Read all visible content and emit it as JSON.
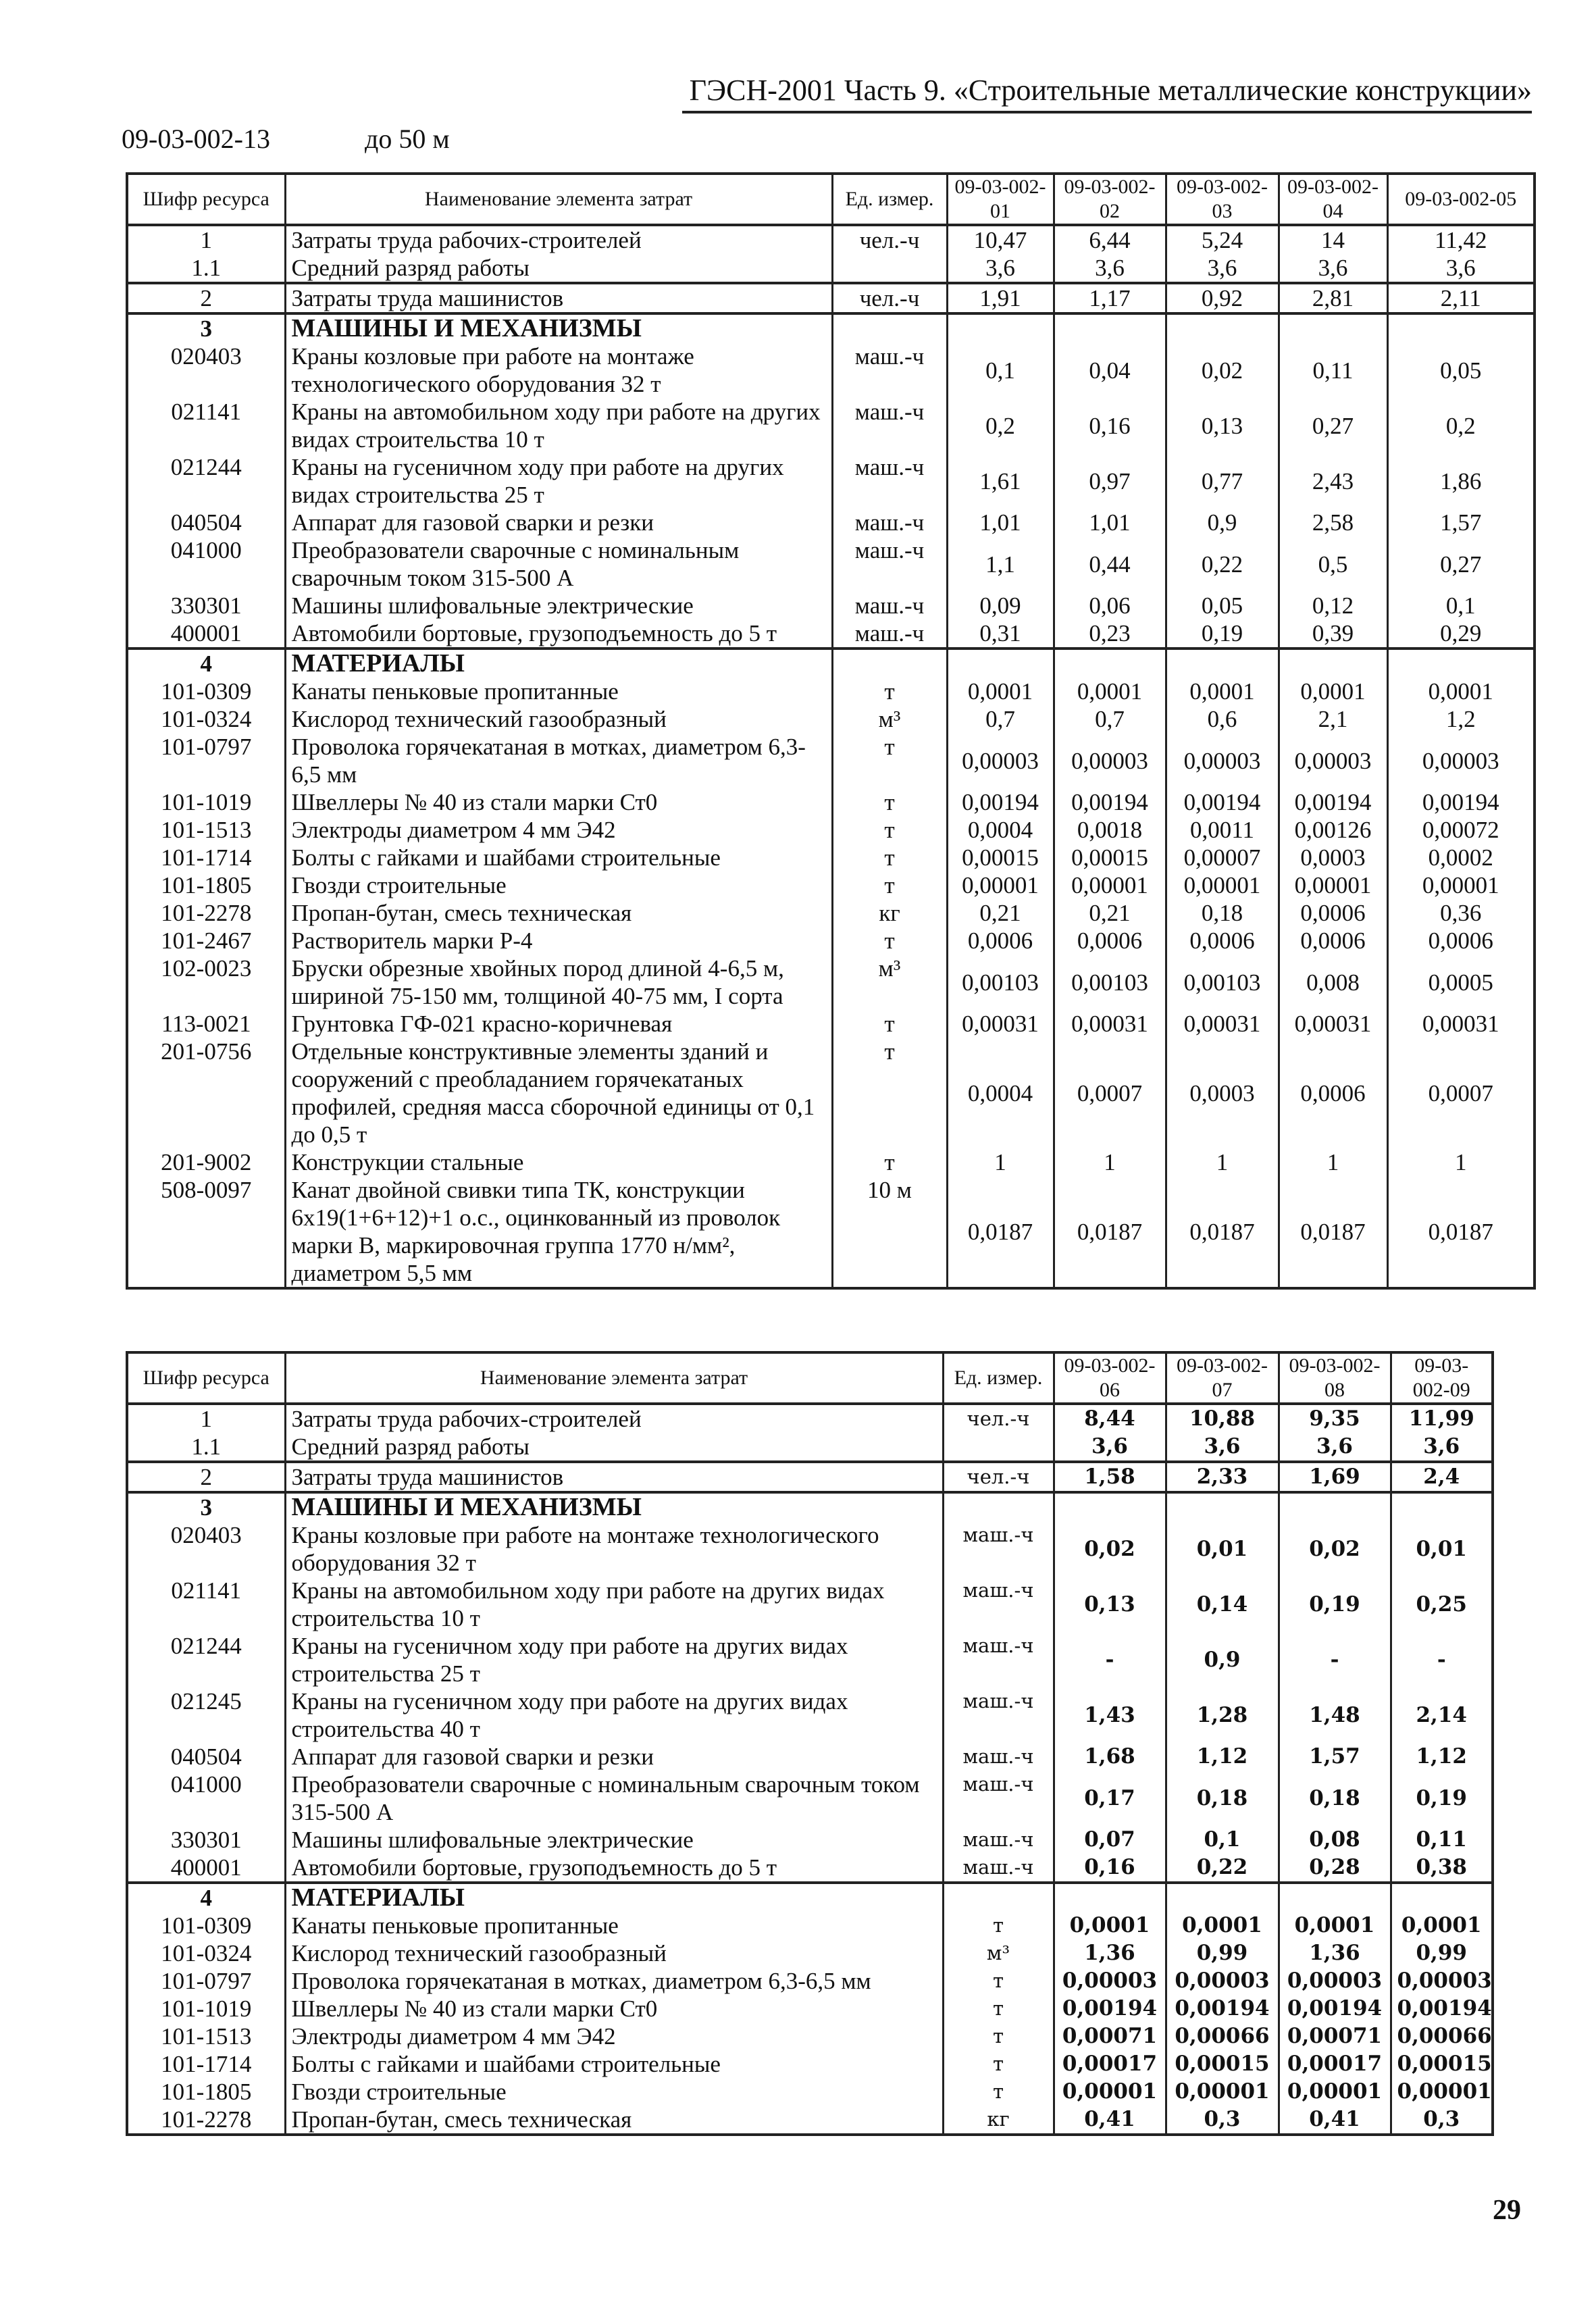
{
  "header": {
    "title": "ГЭСН-2001 Часть 9. «Строительные металлические конструкции»"
  },
  "norm": {
    "code": "09-03-002-13",
    "range": "до 50 м"
  },
  "table1": {
    "headers": {
      "code": "Шифр ресурса",
      "name": "Наименование элемента затрат",
      "unit": "Ед. измер.",
      "cols": [
        "09-03-002-01",
        "09-03-002-02",
        "09-03-002-03",
        "09-03-002-04",
        "09-03-002-05"
      ]
    },
    "groups": [
      [
        {
          "code": "1",
          "name": "Затраты труда рабочих-строителей",
          "unit": "чел.-ч",
          "values": [
            "10,47",
            "6,44",
            "5,24",
            "14",
            "11,42"
          ]
        },
        {
          "code": "1.1",
          "name": "Средний разряд работы",
          "unit": "",
          "values": [
            "3,6",
            "3,6",
            "3,6",
            "3,6",
            "3,6"
          ]
        }
      ],
      [
        {
          "code": "2",
          "name": "Затраты труда машинистов",
          "unit": "чел.-ч",
          "values": [
            "1,91",
            "1,17",
            "0,92",
            "2,81",
            "2,11"
          ]
        }
      ],
      [
        {
          "code": "3",
          "name": "МАШИНЫ И МЕХАНИЗМЫ",
          "unit": "",
          "values": [],
          "section": true
        },
        {
          "code": "020403",
          "name": "Краны козловые при работе на монтаже технологического оборудования 32 т",
          "unit": "маш.-ч",
          "values": [
            "0,1",
            "0,04",
            "0,02",
            "0,11",
            "0,05"
          ]
        },
        {
          "code": "021141",
          "name": "Краны на автомобильном ходу при работе на других видах строительства 10 т",
          "unit": "маш.-ч",
          "values": [
            "0,2",
            "0,16",
            "0,13",
            "0,27",
            "0,2"
          ]
        },
        {
          "code": "021244",
          "name": "Краны на гусеничном ходу при работе на других видах строительства 25 т",
          "unit": "маш.-ч",
          "values": [
            "1,61",
            "0,97",
            "0,77",
            "2,43",
            "1,86"
          ]
        },
        {
          "code": "040504",
          "name": "Аппарат для газовой сварки и резки",
          "unit": "маш.-ч",
          "values": [
            "1,01",
            "1,01",
            "0,9",
            "2,58",
            "1,57"
          ]
        },
        {
          "code": "041000",
          "name": "Преобразователи сварочные с номинальным сварочным током 315-500 А",
          "unit": "маш.-ч",
          "values": [
            "1,1",
            "0,44",
            "0,22",
            "0,5",
            "0,27"
          ]
        },
        {
          "code": "330301",
          "name": "Машины шлифовальные электрические",
          "unit": "маш.-ч",
          "values": [
            "0,09",
            "0,06",
            "0,05",
            "0,12",
            "0,1"
          ]
        },
        {
          "code": "400001",
          "name": "Автомобили бортовые, грузоподъемность до 5 т",
          "unit": "маш.-ч",
          "values": [
            "0,31",
            "0,23",
            "0,19",
            "0,39",
            "0,29"
          ]
        }
      ],
      [
        {
          "code": "4",
          "name": "МАТЕРИАЛЫ",
          "unit": "",
          "values": [],
          "section": true
        },
        {
          "code": "101-0309",
          "name": "Канаты пеньковые пропитанные",
          "unit": "т",
          "values": [
            "0,0001",
            "0,0001",
            "0,0001",
            "0,0001",
            "0,0001"
          ]
        },
        {
          "code": "101-0324",
          "name": "Кислород технический газообразный",
          "unit": "м³",
          "values": [
            "0,7",
            "0,7",
            "0,6",
            "2,1",
            "1,2"
          ]
        },
        {
          "code": "101-0797",
          "name": "Проволока горячекатаная в мотках, диаметром 6,3-6,5 мм",
          "unit": "т",
          "values": [
            "0,00003",
            "0,00003",
            "0,00003",
            "0,00003",
            "0,00003"
          ]
        },
        {
          "code": "101-1019",
          "name": "Швеллеры № 40 из стали марки Ст0",
          "unit": "т",
          "values": [
            "0,00194",
            "0,00194",
            "0,00194",
            "0,00194",
            "0,00194"
          ]
        },
        {
          "code": "101-1513",
          "name": "Электроды диаметром 4 мм Э42",
          "unit": "т",
          "values": [
            "0,0004",
            "0,0018",
            "0,0011",
            "0,00126",
            "0,00072"
          ]
        },
        {
          "code": "101-1714",
          "name": "Болты с гайками и шайбами строительные",
          "unit": "т",
          "values": [
            "0,00015",
            "0,00015",
            "0,00007",
            "0,0003",
            "0,0002"
          ]
        },
        {
          "code": "101-1805",
          "name": "Гвозди строительные",
          "unit": "т",
          "values": [
            "0,00001",
            "0,00001",
            "0,00001",
            "0,00001",
            "0,00001"
          ]
        },
        {
          "code": "101-2278",
          "name": "Пропан-бутан, смесь техническая",
          "unit": "кг",
          "values": [
            "0,21",
            "0,21",
            "0,18",
            "0,0006",
            "0,36"
          ]
        },
        {
          "code": "101-2467",
          "name": "Растворитель марки Р-4",
          "unit": "т",
          "values": [
            "0,0006",
            "0,0006",
            "0,0006",
            "0,0006",
            "0,0006"
          ]
        },
        {
          "code": "102-0023",
          "name": "Бруски обрезные хвойных пород длиной 4-6,5 м, шириной 75-150 мм, толщиной 40-75 мм, I сорта",
          "unit": "м³",
          "values": [
            "0,00103",
            "0,00103",
            "0,00103",
            "0,008",
            "0,0005"
          ]
        },
        {
          "code": "113-0021",
          "name": "Грунтовка ГФ-021 красно-коричневая",
          "unit": "т",
          "values": [
            "0,00031",
            "0,00031",
            "0,00031",
            "0,00031",
            "0,00031"
          ]
        },
        {
          "code": "201-0756",
          "name": "Отдельные конструктивные элементы зданий и сооружений с преобладанием горячекатаных профилей, средняя масса сборочной единицы от 0,1 до 0,5 т",
          "unit": "т",
          "values": [
            "0,0004",
            "0,0007",
            "0,0003",
            "0,0006",
            "0,0007"
          ]
        },
        {
          "code": "201-9002",
          "name": "Конструкции стальные",
          "unit": "т",
          "values": [
            "1",
            "1",
            "1",
            "1",
            "1"
          ]
        },
        {
          "code": "508-0097",
          "name": "Канат двойной свивки типа ТК, конструкции 6х19(1+6+12)+1 о.с., оцинкованный из проволок марки В, маркировочная группа 1770 н/мм², диаметром 5,5 мм",
          "unit": "10 м",
          "values": [
            "0,0187",
            "0,0187",
            "0,0187",
            "0,0187",
            "0,0187"
          ]
        }
      ]
    ]
  },
  "table2": {
    "headers": {
      "code": "Шифр ресурса",
      "name": "Наименование элемента затрат",
      "unit": "Ед. измер.",
      "cols": [
        "09-03-002-06",
        "09-03-002-07",
        "09-03-002-08",
        "09-03-002-09"
      ]
    },
    "groups": [
      [
        {
          "code": "1",
          "name": "Затраты труда рабочих-строителей",
          "unit": "чел.-ч",
          "values": [
            "8,44",
            "10,88",
            "9,35",
            "11,99"
          ]
        },
        {
          "code": "1.1",
          "name": "Средний разряд работы",
          "unit": "",
          "values": [
            "3,6",
            "3,6",
            "3,6",
            "3,6"
          ]
        }
      ],
      [
        {
          "code": "2",
          "name": "Затраты труда машинистов",
          "unit": "чел.-ч",
          "values": [
            "1,58",
            "2,33",
            "1,69",
            "2,4"
          ]
        }
      ],
      [
        {
          "code": "3",
          "name": "МАШИНЫ И МЕХАНИЗМЫ",
          "unit": "",
          "values": [],
          "section": true
        },
        {
          "code": "020403",
          "name": "Краны козловые при работе на монтаже технологического оборудования 32 т",
          "unit": "маш.-ч",
          "values": [
            "0,02",
            "0,01",
            "0,02",
            "0,01"
          ]
        },
        {
          "code": "021141",
          "name": "Краны на автомобильном ходу при работе на других видах строительства 10 т",
          "unit": "маш.-ч",
          "values": [
            "0,13",
            "0,14",
            "0,19",
            "0,25"
          ]
        },
        {
          "code": "021244",
          "name": "Краны на гусеничном ходу при работе на других видах строительства 25 т",
          "unit": "маш.-ч",
          "values": [
            "-",
            "0,9",
            "-",
            "-"
          ]
        },
        {
          "code": "021245",
          "name": "Краны на гусеничном ходу при работе на других видах строительства 40 т",
          "unit": "маш.-ч",
          "values": [
            "1,43",
            "1,28",
            "1,48",
            "2,14"
          ]
        },
        {
          "code": "040504",
          "name": "Аппарат для газовой сварки и резки",
          "unit": "маш.-ч",
          "values": [
            "1,68",
            "1,12",
            "1,57",
            "1,12"
          ]
        },
        {
          "code": "041000",
          "name": "Преобразователи сварочные с номинальным сварочным током 315-500 А",
          "unit": "маш.-ч",
          "values": [
            "0,17",
            "0,18",
            "0,18",
            "0,19"
          ]
        },
        {
          "code": "330301",
          "name": "Машины шлифовальные электрические",
          "unit": "маш.-ч",
          "values": [
            "0,07",
            "0,1",
            "0,08",
            "0,11"
          ]
        },
        {
          "code": "400001",
          "name": "Автомобили бортовые, грузоподъемность до 5 т",
          "unit": "маш.-ч",
          "values": [
            "0,16",
            "0,22",
            "0,28",
            "0,38"
          ]
        }
      ],
      [
        {
          "code": "4",
          "name": "МАТЕРИАЛЫ",
          "unit": "",
          "values": [],
          "section": true
        },
        {
          "code": "101-0309",
          "name": "Канаты пеньковые пропитанные",
          "unit": "т",
          "values": [
            "0,0001",
            "0,0001",
            "0,0001",
            "0,0001"
          ]
        },
        {
          "code": "101-0324",
          "name": "Кислород технический газообразный",
          "unit": "м³",
          "values": [
            "1,36",
            "0,99",
            "1,36",
            "0,99"
          ]
        },
        {
          "code": "101-0797",
          "name": "Проволока горячекатаная в мотках, диаметром 6,3-6,5 мм",
          "unit": "т",
          "values": [
            "0,00003",
            "0,00003",
            "0,00003",
            "0,00003"
          ]
        },
        {
          "code": "101-1019",
          "name": "Швеллеры № 40 из стали марки Ст0",
          "unit": "т",
          "values": [
            "0,00194",
            "0,00194",
            "0,00194",
            "0,00194"
          ]
        },
        {
          "code": "101-1513",
          "name": "Электроды диаметром 4 мм Э42",
          "unit": "т",
          "values": [
            "0,00071",
            "0,00066",
            "0,00071",
            "0,00066"
          ]
        },
        {
          "code": "101-1714",
          "name": "Болты с гайками и шайбами строительные",
          "unit": "т",
          "values": [
            "0,00017",
            "0,00015",
            "0,00017",
            "0,00015"
          ]
        },
        {
          "code": "101-1805",
          "name": "Гвозди строительные",
          "unit": "т",
          "values": [
            "0,00001",
            "0,00001",
            "0,00001",
            "0,00001"
          ]
        },
        {
          "code": "101-2278",
          "name": "Пропан-бутан, смесь техническая",
          "unit": "кг",
          "values": [
            "0,41",
            "0,3",
            "0,41",
            "0,3"
          ]
        }
      ]
    ]
  },
  "page_number": "29"
}
